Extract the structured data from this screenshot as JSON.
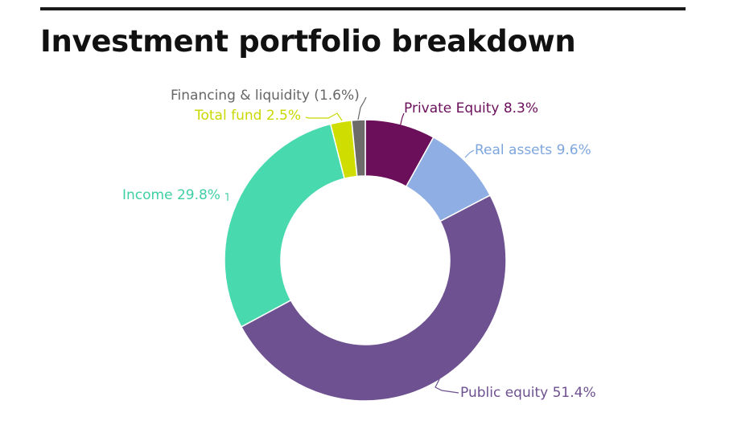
{
  "header": {
    "title": "Investment portfolio breakdown"
  },
  "chart_data": {
    "type": "pie",
    "variant": "donut",
    "title": "Investment portfolio breakdown",
    "slices": [
      {
        "label": "Private Equity",
        "value": 8.3,
        "display": "Private Equity 8.3%",
        "color": "#6b0f5a",
        "label_color": "#6b0f5a"
      },
      {
        "label": "Real assets",
        "value": 9.6,
        "display": "Real assets 9.6%",
        "color": "#8faee3",
        "label_color": "#7ea6de"
      },
      {
        "label": "Public equity",
        "value": 51.4,
        "display": "Public equity 51.4%",
        "color": "#6e5190",
        "label_color": "#6e5190"
      },
      {
        "label": "Income",
        "value": 29.8,
        "display": "Income 29.8%",
        "color": "#48d9ae",
        "label_color": "#3fcfa4"
      },
      {
        "label": "Total fund",
        "value": 2.5,
        "display": "Total fund 2.5%",
        "color": "#cfdd00",
        "label_color": "#c9d800"
      },
      {
        "label": "Financing & liquidity",
        "value": 1.6,
        "display": "Financing & liquidity (1.6%)",
        "color": "#6d6a6a",
        "label_color": "#666666"
      }
    ],
    "legend": "none",
    "labels": "outside-with-leader-lines"
  }
}
